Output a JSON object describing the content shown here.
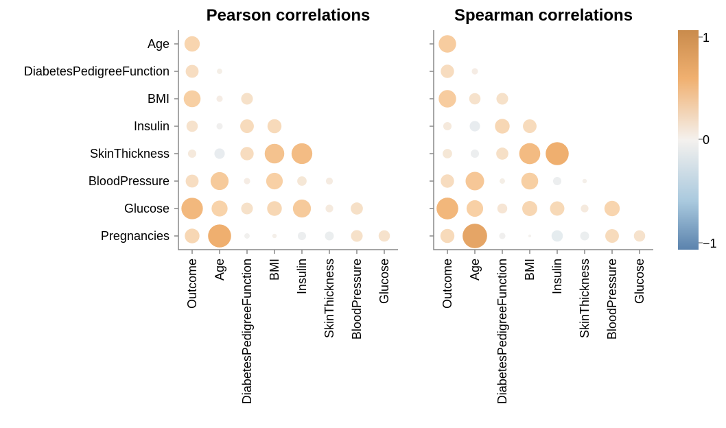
{
  "chart_data": [
    {
      "type": "bubble-heatmap",
      "title": "Pearson correlations",
      "x_categories": [
        "Outcome",
        "Age",
        "DiabetesPedigreeFunction",
        "BMI",
        "Insulin",
        "SkinThickness",
        "BloodPressure",
        "Glucose"
      ],
      "y_categories": [
        "Age",
        "DiabetesPedigreeFunction",
        "BMI",
        "Insulin",
        "SkinThickness",
        "BloodPressure",
        "Glucose",
        "Pregnancies"
      ],
      "cells": [
        {
          "x": "Outcome",
          "y": "Age",
          "value": 0.24
        },
        {
          "x": "Outcome",
          "y": "DiabetesPedigreeFunction",
          "value": 0.17
        },
        {
          "x": "Age",
          "y": "DiabetesPedigreeFunction",
          "value": 0.03
        },
        {
          "x": "Outcome",
          "y": "BMI",
          "value": 0.29
        },
        {
          "x": "Age",
          "y": "BMI",
          "value": 0.04
        },
        {
          "x": "DiabetesPedigreeFunction",
          "y": "BMI",
          "value": 0.14
        },
        {
          "x": "Outcome",
          "y": "Insulin",
          "value": 0.13
        },
        {
          "x": "Age",
          "y": "Insulin",
          "value": -0.04
        },
        {
          "x": "DiabetesPedigreeFunction",
          "y": "Insulin",
          "value": 0.19
        },
        {
          "x": "BMI",
          "y": "Insulin",
          "value": 0.2
        },
        {
          "x": "Outcome",
          "y": "SkinThickness",
          "value": 0.07
        },
        {
          "x": "Age",
          "y": "SkinThickness",
          "value": -0.11
        },
        {
          "x": "DiabetesPedigreeFunction",
          "y": "SkinThickness",
          "value": 0.18
        },
        {
          "x": "BMI",
          "y": "SkinThickness",
          "value": 0.39
        },
        {
          "x": "Insulin",
          "y": "SkinThickness",
          "value": 0.44
        },
        {
          "x": "Outcome",
          "y": "BloodPressure",
          "value": 0.17
        },
        {
          "x": "Age",
          "y": "BloodPressure",
          "value": 0.33
        },
        {
          "x": "DiabetesPedigreeFunction",
          "y": "BloodPressure",
          "value": 0.04
        },
        {
          "x": "BMI",
          "y": "BloodPressure",
          "value": 0.28
        },
        {
          "x": "Insulin",
          "y": "BloodPressure",
          "value": 0.09
        },
        {
          "x": "SkinThickness",
          "y": "BloodPressure",
          "value": 0.05
        },
        {
          "x": "Outcome",
          "y": "Glucose",
          "value": 0.47
        },
        {
          "x": "Age",
          "y": "Glucose",
          "value": 0.26
        },
        {
          "x": "DiabetesPedigreeFunction",
          "y": "Glucose",
          "value": 0.14
        },
        {
          "x": "BMI",
          "y": "Glucose",
          "value": 0.22
        },
        {
          "x": "Insulin",
          "y": "Glucose",
          "value": 0.33
        },
        {
          "x": "SkinThickness",
          "y": "Glucose",
          "value": 0.06
        },
        {
          "x": "BloodPressure",
          "y": "Glucose",
          "value": 0.15
        },
        {
          "x": "Outcome",
          "y": "Pregnancies",
          "value": 0.22
        },
        {
          "x": "Age",
          "y": "Pregnancies",
          "value": 0.54
        },
        {
          "x": "DiabetesPedigreeFunction",
          "y": "Pregnancies",
          "value": -0.03
        },
        {
          "x": "BMI",
          "y": "Pregnancies",
          "value": 0.02
        },
        {
          "x": "Insulin",
          "y": "Pregnancies",
          "value": -0.07
        },
        {
          "x": "SkinThickness",
          "y": "Pregnancies",
          "value": -0.08
        },
        {
          "x": "BloodPressure",
          "y": "Pregnancies",
          "value": 0.14
        },
        {
          "x": "Glucose",
          "y": "Pregnancies",
          "value": 0.13
        }
      ]
    },
    {
      "type": "bubble-heatmap",
      "title": "Spearman correlations",
      "x_categories": [
        "Outcome",
        "Age",
        "DiabetesPedigreeFunction",
        "BMI",
        "Insulin",
        "SkinThickness",
        "BloodPressure",
        "Glucose"
      ],
      "y_categories": [
        "Age",
        "DiabetesPedigreeFunction",
        "BMI",
        "Insulin",
        "SkinThickness",
        "BloodPressure",
        "Glucose",
        "Pregnancies"
      ],
      "cells": [
        {
          "x": "Outcome",
          "y": "Age",
          "value": 0.31
        },
        {
          "x": "Outcome",
          "y": "DiabetesPedigreeFunction",
          "value": 0.18
        },
        {
          "x": "Age",
          "y": "DiabetesPedigreeFunction",
          "value": 0.04
        },
        {
          "x": "Outcome",
          "y": "BMI",
          "value": 0.31
        },
        {
          "x": "Age",
          "y": "BMI",
          "value": 0.13
        },
        {
          "x": "DiabetesPedigreeFunction",
          "y": "BMI",
          "value": 0.14
        },
        {
          "x": "Outcome",
          "y": "Insulin",
          "value": 0.07
        },
        {
          "x": "Age",
          "y": "Insulin",
          "value": -0.11
        },
        {
          "x": "DiabetesPedigreeFunction",
          "y": "Insulin",
          "value": 0.22
        },
        {
          "x": "BMI",
          "y": "Insulin",
          "value": 0.19
        },
        {
          "x": "Outcome",
          "y": "SkinThickness",
          "value": 0.09
        },
        {
          "x": "Age",
          "y": "SkinThickness",
          "value": -0.07
        },
        {
          "x": "DiabetesPedigreeFunction",
          "y": "SkinThickness",
          "value": 0.15
        },
        {
          "x": "BMI",
          "y": "SkinThickness",
          "value": 0.45
        },
        {
          "x": "Insulin",
          "y": "SkinThickness",
          "value": 0.54
        },
        {
          "x": "Outcome",
          "y": "BloodPressure",
          "value": 0.18
        },
        {
          "x": "Age",
          "y": "BloodPressure",
          "value": 0.35
        },
        {
          "x": "DiabetesPedigreeFunction",
          "y": "BloodPressure",
          "value": 0.03
        },
        {
          "x": "BMI",
          "y": "BloodPressure",
          "value": 0.29
        },
        {
          "x": "Insulin",
          "y": "BloodPressure",
          "value": -0.07
        },
        {
          "x": "SkinThickness",
          "y": "BloodPressure",
          "value": 0.02
        },
        {
          "x": "Outcome",
          "y": "Glucose",
          "value": 0.48
        },
        {
          "x": "Age",
          "y": "Glucose",
          "value": 0.28
        },
        {
          "x": "DiabetesPedigreeFunction",
          "y": "Glucose",
          "value": 0.1
        },
        {
          "x": "BMI",
          "y": "Glucose",
          "value": 0.23
        },
        {
          "x": "Insulin",
          "y": "Glucose",
          "value": 0.21
        },
        {
          "x": "SkinThickness",
          "y": "Glucose",
          "value": 0.06
        },
        {
          "x": "BloodPressure",
          "y": "Glucose",
          "value": 0.24
        },
        {
          "x": "Outcome",
          "y": "Pregnancies",
          "value": 0.2
        },
        {
          "x": "Age",
          "y": "Pregnancies",
          "value": 0.61
        },
        {
          "x": "DiabetesPedigreeFunction",
          "y": "Pregnancies",
          "value": -0.04
        },
        {
          "x": "BMI",
          "y": "Pregnancies",
          "value": 0.0
        },
        {
          "x": "Insulin",
          "y": "Pregnancies",
          "value": -0.13
        },
        {
          "x": "SkinThickness",
          "y": "Pregnancies",
          "value": -0.08
        },
        {
          "x": "BloodPressure",
          "y": "Pregnancies",
          "value": 0.19
        },
        {
          "x": "Glucose",
          "y": "Pregnancies",
          "value": 0.13
        }
      ]
    }
  ],
  "legend": {
    "type": "color-gradient",
    "domain": [
      -1,
      1
    ],
    "tick_labels": [
      "1",
      "0",
      "−1"
    ],
    "colors": {
      "negative": "#5b83ad",
      "neutral": "#f4f1ee",
      "positive": "#c98b4c"
    }
  }
}
